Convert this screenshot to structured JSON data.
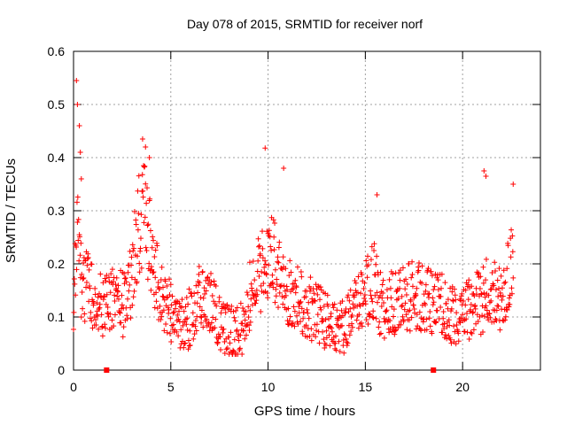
{
  "chart_data": {
    "type": "scatter",
    "title": "Day 078 of 2015, SRMTID for receiver norf",
    "xlabel": "GPS time / hours",
    "ylabel": "SRMTID / TECUs",
    "xlim": [
      0,
      24
    ],
    "ylim": [
      0,
      0.6
    ],
    "x_ticks": [
      0,
      5,
      10,
      15,
      20
    ],
    "y_ticks": [
      0,
      0.1,
      0.2,
      0.3,
      0.4,
      0.5,
      0.6
    ],
    "x_tick_labels": [
      "0",
      "5",
      "10",
      "15",
      "20"
    ],
    "y_tick_labels": [
      "0",
      "0.1",
      "0.2",
      "0.3",
      "0.4",
      "0.5",
      "0.6"
    ],
    "grid": true,
    "marker": "plus",
    "color": "#ff0000",
    "gap_marks": [
      1.7,
      18.5
    ],
    "profile": {
      "x": [
        0.0,
        0.1,
        0.2,
        0.35,
        0.5,
        0.8,
        1.0,
        1.3,
        1.6,
        2.0,
        2.3,
        2.6,
        3.0,
        3.2,
        3.4,
        3.6,
        3.8,
        4.0,
        4.3,
        4.6,
        5.0,
        5.3,
        5.6,
        6.0,
        6.4,
        6.8,
        7.2,
        7.6,
        8.0,
        8.4,
        8.8,
        9.0,
        9.3,
        9.6,
        9.9,
        10.2,
        10.5,
        10.8,
        11.2,
        11.6,
        12.0,
        12.4,
        12.8,
        13.2,
        13.6,
        14.0,
        14.4,
        14.8,
        15.2,
        15.5,
        15.8,
        16.2,
        16.6,
        17.0,
        17.4,
        17.8,
        18.2,
        18.6,
        19.0,
        19.4,
        19.8,
        20.2,
        20.6,
        21.0,
        21.3,
        21.6,
        22.0,
        22.3,
        22.6
      ],
      "y": [
        0.13,
        0.18,
        0.25,
        0.18,
        0.15,
        0.16,
        0.14,
        0.12,
        0.12,
        0.13,
        0.13,
        0.12,
        0.17,
        0.24,
        0.28,
        0.3,
        0.26,
        0.23,
        0.17,
        0.14,
        0.11,
        0.09,
        0.08,
        0.1,
        0.14,
        0.15,
        0.12,
        0.08,
        0.07,
        0.07,
        0.08,
        0.13,
        0.17,
        0.18,
        0.2,
        0.22,
        0.18,
        0.16,
        0.14,
        0.13,
        0.12,
        0.11,
        0.1,
        0.09,
        0.08,
        0.08,
        0.11,
        0.13,
        0.16,
        0.17,
        0.12,
        0.12,
        0.13,
        0.13,
        0.14,
        0.14,
        0.13,
        0.12,
        0.12,
        0.11,
        0.1,
        0.11,
        0.12,
        0.13,
        0.16,
        0.15,
        0.12,
        0.18,
        0.2
      ]
    },
    "spikes": [
      {
        "x": 0.15,
        "y": 0.545
      },
      {
        "x": 0.2,
        "y": 0.5
      },
      {
        "x": 0.3,
        "y": 0.46
      },
      {
        "x": 0.35,
        "y": 0.41
      },
      {
        "x": 0.4,
        "y": 0.36
      },
      {
        "x": 3.55,
        "y": 0.435
      },
      {
        "x": 3.7,
        "y": 0.42
      },
      {
        "x": 3.9,
        "y": 0.4
      },
      {
        "x": 9.85,
        "y": 0.418
      },
      {
        "x": 10.8,
        "y": 0.38
      },
      {
        "x": 15.6,
        "y": 0.33
      },
      {
        "x": 21.1,
        "y": 0.375
      },
      {
        "x": 21.2,
        "y": 0.365
      },
      {
        "x": 22.6,
        "y": 0.35
      }
    ]
  }
}
